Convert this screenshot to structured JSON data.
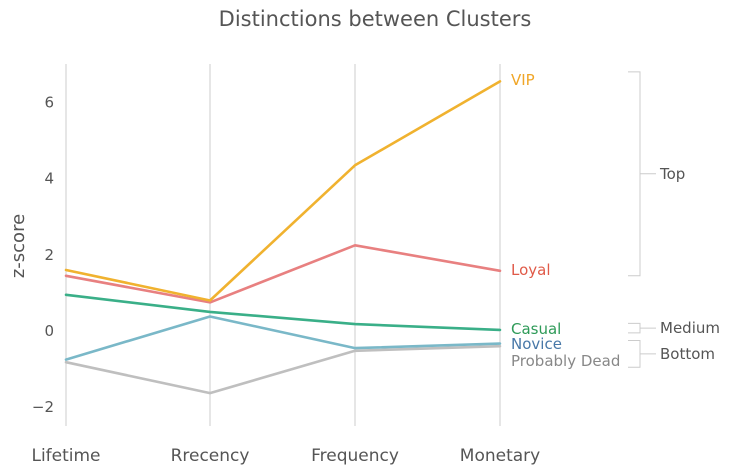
{
  "chart_data": {
    "type": "line",
    "title": "Distinctions between Clusters",
    "ylabel": "z-score",
    "xlabel": "",
    "categories": [
      "Lifetime",
      "Rrecency",
      "Frequency",
      "Monetary"
    ],
    "ylim": [
      -2.5,
      7.0
    ],
    "yticks": [
      -2,
      0,
      2,
      4,
      6
    ],
    "ytick_labels": [
      "−2",
      "0",
      "2",
      "4",
      "6"
    ],
    "grid": "vertical",
    "series": [
      {
        "name": "VIP",
        "color": "#f0b22f",
        "values": [
          1.6,
          0.8,
          4.35,
          6.55
        ]
      },
      {
        "name": "Loyal",
        "color": "#e88080",
        "values": [
          1.45,
          0.75,
          2.25,
          1.58
        ]
      },
      {
        "name": "Casual",
        "color": "#3aaf88",
        "values": [
          0.95,
          0.5,
          0.18,
          0.03
        ]
      },
      {
        "name": "Novice",
        "color": "#7ab8c8",
        "values": [
          -0.75,
          0.38,
          -0.45,
          -0.33
        ]
      },
      {
        "name": "Probably Dead",
        "color": "#bfbfbf",
        "values": [
          -0.82,
          -1.63,
          -0.52,
          -0.4
        ]
      }
    ],
    "series_label_colors": {
      "VIP": "#f0a628",
      "Loyal": "#e05a48",
      "Casual": "#2e9a58",
      "Novice": "#4878a8",
      "Probably Dead": "#888888"
    },
    "groups": [
      {
        "label": "Top",
        "range": [
          1.45,
          6.8
        ]
      },
      {
        "label": "Medium",
        "range": [
          -0.05,
          0.2
        ]
      },
      {
        "label": "Bottom",
        "range": [
          -0.95,
          -0.25
        ]
      }
    ]
  }
}
